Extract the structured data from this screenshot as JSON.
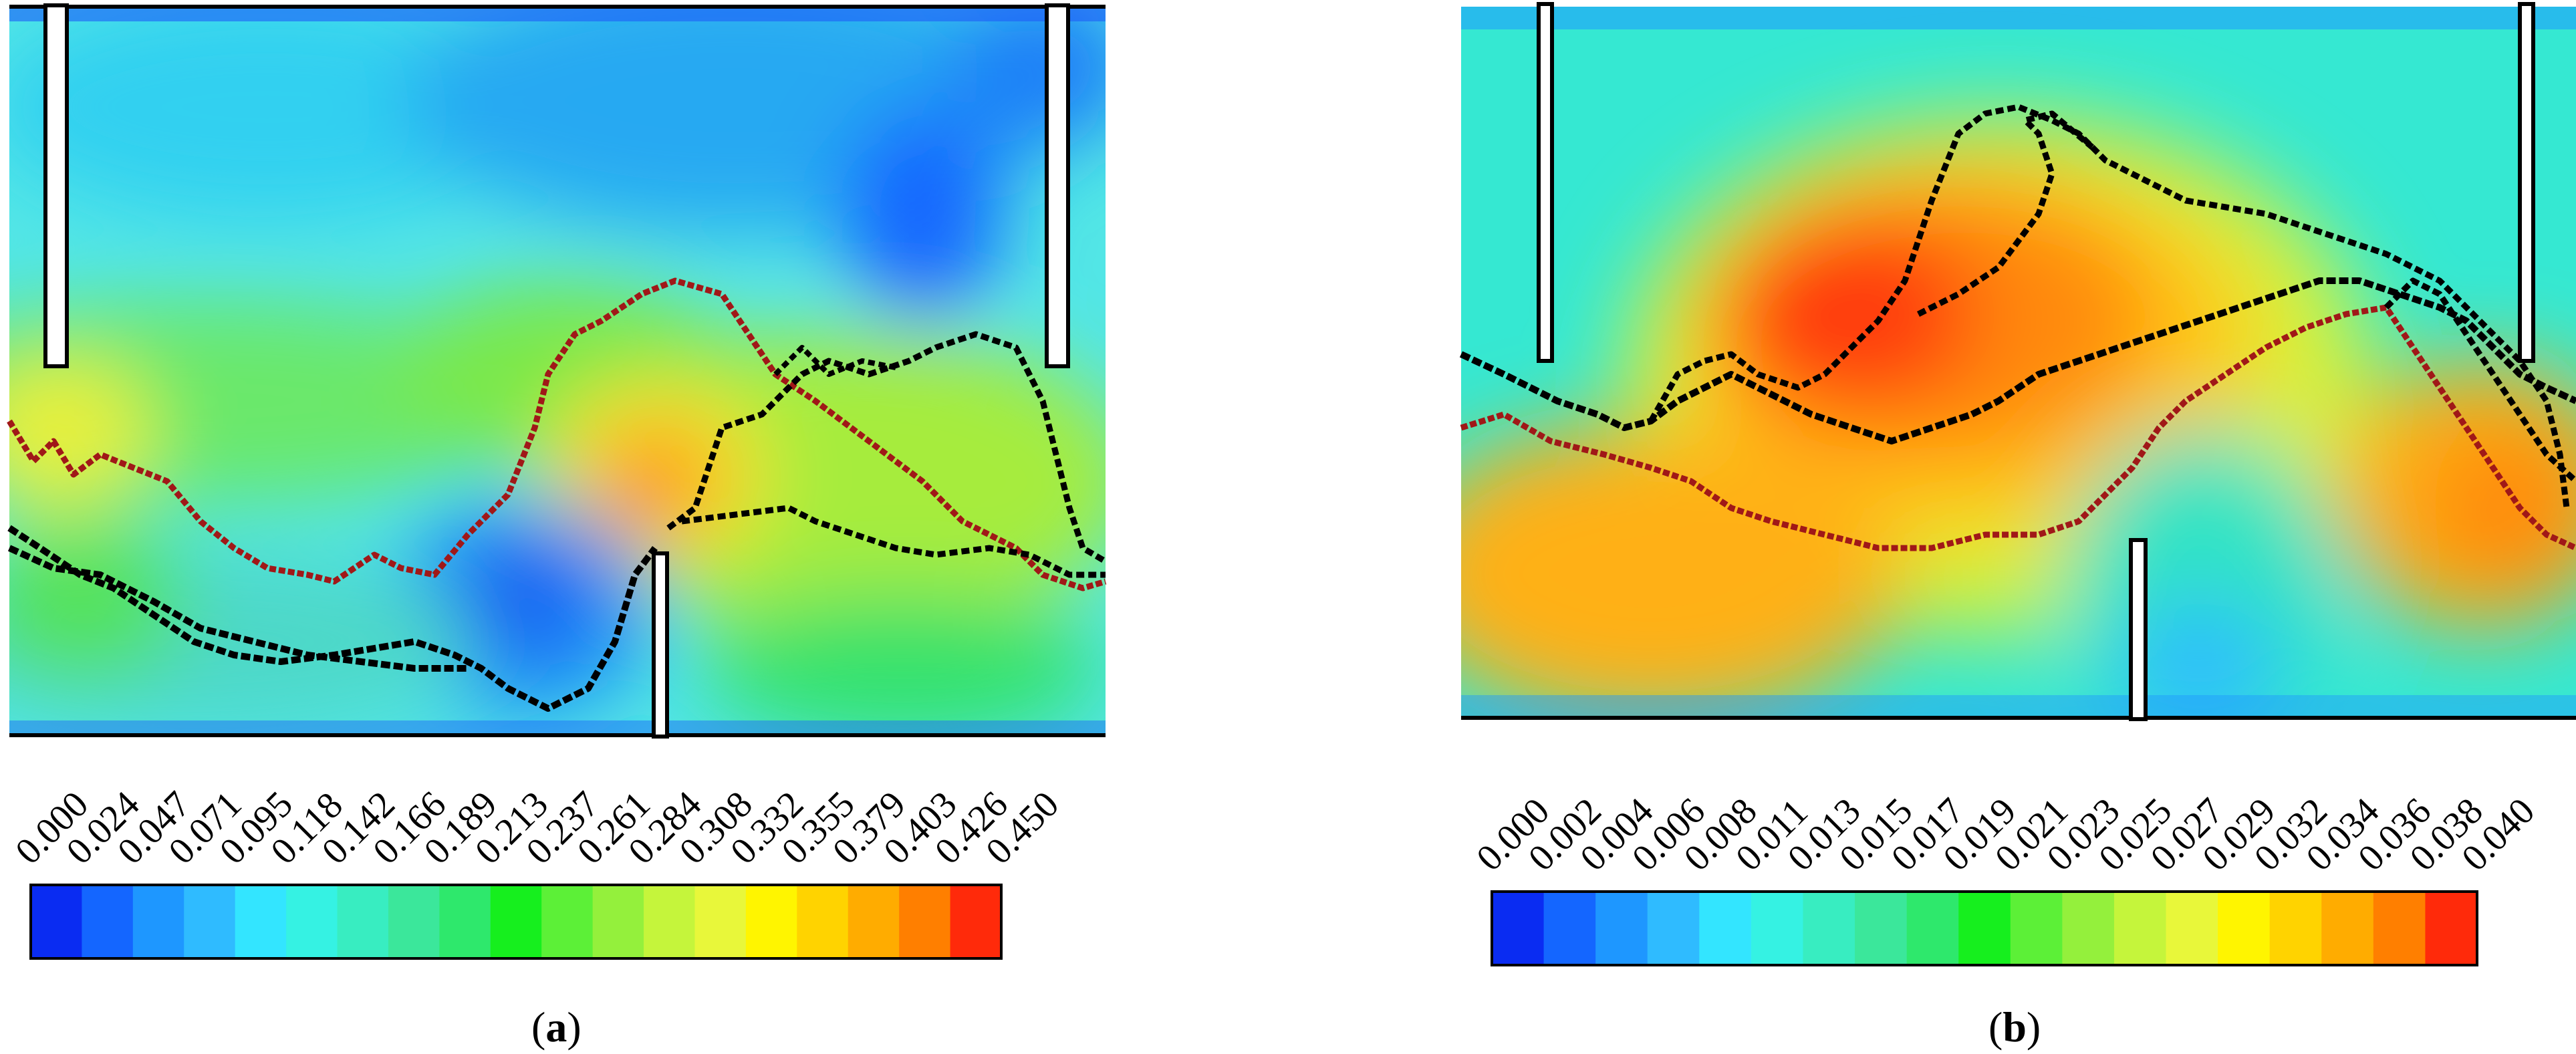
{
  "panels": [
    {
      "letter": "a",
      "caption_open": "(",
      "caption_close": ")",
      "colorbar": {
        "colors": [
          "#0a2cf2",
          "#1466ff",
          "#1e97ff",
          "#2fbbff",
          "#33e5ff",
          "#35f2e3",
          "#38edc1",
          "#3be79b",
          "#2ee86c",
          "#16ef1e",
          "#5cf037",
          "#94f03c",
          "#c5f53b",
          "#e8f73a",
          "#fff500",
          "#ffd300",
          "#ffac00",
          "#ff7f00",
          "#ff2a0a"
        ],
        "ticks": [
          "0.000",
          "0.024",
          "0.047",
          "0.071",
          "0.095",
          "0.118",
          "0.142",
          "0.166",
          "0.189",
          "0.213",
          "0.237",
          "0.261",
          "0.284",
          "0.308",
          "0.332",
          "0.355",
          "0.379",
          "0.403",
          "0.426",
          "0.450"
        ]
      }
    },
    {
      "letter": "b",
      "caption_open": "(",
      "caption_close": ")",
      "colorbar": {
        "colors": [
          "#0a2cf2",
          "#1466ff",
          "#1e97ff",
          "#2fbbff",
          "#33e5ff",
          "#35f2e3",
          "#38edc1",
          "#3be79b",
          "#2ee86c",
          "#16ef1e",
          "#5cf037",
          "#94f03c",
          "#c5f53b",
          "#e8f73a",
          "#fff500",
          "#ffd300",
          "#ffac00",
          "#ff7f00",
          "#ff2a0a"
        ],
        "ticks": [
          "0.000",
          "0.002",
          "0.004",
          "0.006",
          "0.008",
          "0.011",
          "0.013",
          "0.015",
          "0.017",
          "0.019",
          "0.021",
          "0.023",
          "0.025",
          "0.027",
          "0.029",
          "0.032",
          "0.034",
          "0.036",
          "0.038",
          "0.040"
        ]
      }
    }
  ],
  "path_colors": {
    "black": "#000000",
    "red": "#a01818"
  }
}
